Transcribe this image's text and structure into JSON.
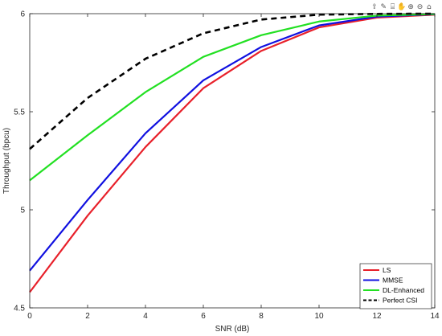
{
  "chart_data": {
    "type": "line",
    "title": "",
    "xlabel": "SNR (dB)",
    "ylabel": "Throughput (bpcu)",
    "xlim": [
      0,
      14
    ],
    "ylim": [
      4.5,
      6
    ],
    "x_ticks": [
      "0",
      "2",
      "4",
      "6",
      "8",
      "10",
      "12",
      "14"
    ],
    "y_ticks": [
      "4.5",
      "5",
      "5.5",
      "6"
    ],
    "x": [
      0,
      2,
      4,
      6,
      8,
      10,
      12,
      14
    ],
    "grid": false,
    "legend_position": "bottom-right",
    "series": [
      {
        "name": "LS",
        "color": "#e8202a",
        "style": "solid",
        "values": [
          4.58,
          4.97,
          5.32,
          5.62,
          5.81,
          5.93,
          5.98,
          5.995
        ]
      },
      {
        "name": "MMSE",
        "color": "#1010e0",
        "style": "solid",
        "values": [
          4.69,
          5.05,
          5.39,
          5.66,
          5.83,
          5.94,
          5.985,
          5.997
        ]
      },
      {
        "name": "DL-Enhanced",
        "color": "#22e022",
        "style": "solid",
        "values": [
          5.15,
          5.38,
          5.6,
          5.78,
          5.89,
          5.96,
          5.99,
          5.998
        ]
      },
      {
        "name": "Perfect CSI",
        "color": "#000000",
        "style": "dashed",
        "values": [
          5.31,
          5.57,
          5.77,
          5.9,
          5.97,
          5.995,
          5.999,
          6.0
        ]
      }
    ]
  },
  "toolbar": {
    "icons": [
      "export-icon",
      "brush-icon",
      "datatip-icon",
      "pan-icon",
      "zoom-in-icon",
      "zoom-out-icon",
      "home-icon"
    ]
  }
}
